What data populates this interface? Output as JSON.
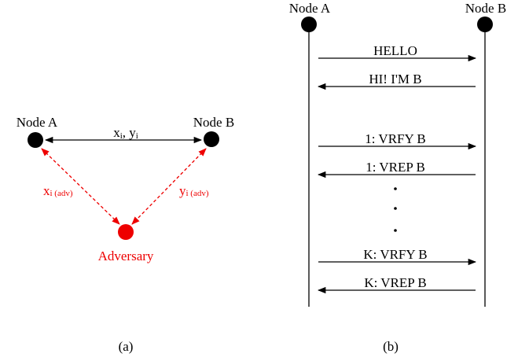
{
  "panel_a": {
    "node_a": "Node A",
    "node_b": "Node B",
    "adversary": "Adversary",
    "edge_ab": {
      "x": "x",
      "x_sub": "i",
      "sep": ", ",
      "y": "y",
      "y_sub": "i"
    },
    "edge_a_adv": {
      "main": "x",
      "sub": "i (adv)"
    },
    "edge_b_adv": {
      "main": "y",
      "sub": "i (adv)"
    },
    "caption": "(a)"
  },
  "panel_b": {
    "node_a": "Node A",
    "node_b": "Node B",
    "messages": [
      {
        "label": "HELLO",
        "direction": "right"
      },
      {
        "label": "HI! I'M B",
        "direction": "left"
      },
      {
        "label": "1: VRFY B",
        "direction": "right"
      },
      {
        "label": "1: VREP B",
        "direction": "left"
      },
      {
        "label": "K: VRFY B",
        "direction": "right"
      },
      {
        "label": "K: VREP B",
        "direction": "left"
      }
    ],
    "caption": "(b)"
  }
}
